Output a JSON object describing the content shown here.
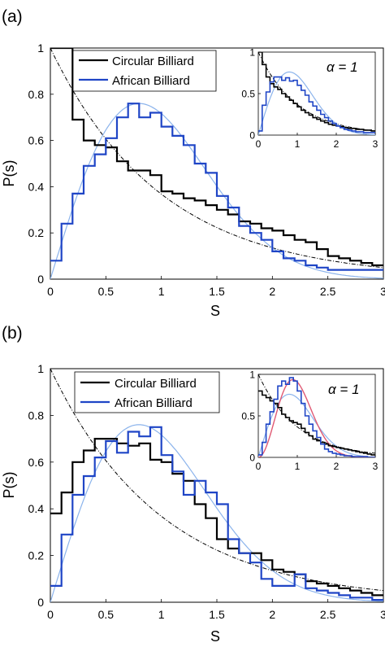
{
  "colors": {
    "circular": "#000000",
    "african": "#1f45c6",
    "poisson": "#000000",
    "wigner": "#8cb4ec",
    "gue": "#e05a74",
    "axis": "#000000"
  },
  "chart_data": [
    {
      "type": "line",
      "panel_label": "(a)",
      "xlabel": "S",
      "ylabel": "P(s)",
      "xlim": [
        0,
        3
      ],
      "ylim": [
        0,
        1
      ],
      "xticks": [
        "0",
        "0.5",
        "1",
        "1.5",
        "2",
        "2.5",
        "3"
      ],
      "yticks": [
        "0",
        "0.2",
        "0.4",
        "0.6",
        "0.8",
        "1"
      ],
      "legend_position": "top-left",
      "series": [
        {
          "name": "Circular Billiard",
          "style": "step",
          "bin_width": 0.1,
          "values": [
            1.0,
            1.0,
            0.69,
            0.6,
            0.58,
            0.57,
            0.51,
            0.47,
            0.47,
            0.45,
            0.38,
            0.37,
            0.35,
            0.34,
            0.32,
            0.3,
            0.28,
            0.25,
            0.24,
            0.22,
            0.21,
            0.19,
            0.17,
            0.16,
            0.13,
            0.1,
            0.09,
            0.08,
            0.07,
            0.06
          ]
        },
        {
          "name": "African Billiard",
          "style": "step",
          "bin_width": 0.1,
          "values": [
            0.08,
            0.24,
            0.37,
            0.49,
            0.54,
            0.61,
            0.7,
            0.76,
            0.7,
            0.72,
            0.66,
            0.62,
            0.58,
            0.5,
            0.46,
            0.36,
            0.31,
            0.23,
            0.2,
            0.17,
            0.12,
            0.09,
            0.08,
            0.06,
            0.05,
            0.04,
            0.04,
            0.04,
            0.04,
            0.04
          ]
        },
        {
          "style": "poisson-curve",
          "function": "exp(-s)"
        },
        {
          "style": "wigner-curve",
          "function": "(pi/2) s exp(-pi s^2/4)"
        }
      ],
      "inset": {
        "annotation": "α = 1",
        "xlim": [
          0,
          3
        ],
        "ylim": [
          0,
          1
        ],
        "xticks": [
          "0",
          "1",
          "2",
          "3"
        ],
        "yticks": [
          "0",
          "0.5",
          "1"
        ],
        "series": [
          {
            "name": "Circular Billiard",
            "style": "step",
            "bin_width": 0.1,
            "values": [
              1.0,
              0.85,
              0.7,
              0.62,
              0.58,
              0.55,
              0.5,
              0.46,
              0.42,
              0.38,
              0.34,
              0.3,
              0.27,
              0.24,
              0.21,
              0.19,
              0.17,
              0.15,
              0.13,
              0.12,
              0.11,
              0.1,
              0.09,
              0.08,
              0.08,
              0.07,
              0.07,
              0.06,
              0.06,
              0.05
            ]
          },
          {
            "name": "African Billiard",
            "style": "step",
            "bin_width": 0.1,
            "values": [
              0.05,
              0.36,
              0.52,
              0.64,
              0.7,
              0.7,
              0.66,
              0.69,
              0.65,
              0.66,
              0.6,
              0.54,
              0.48,
              0.4,
              0.35,
              0.3,
              0.25,
              0.21,
              0.17,
              0.14,
              0.11,
              0.09,
              0.07,
              0.06,
              0.05,
              0.04,
              0.04,
              0.03,
              0.03,
              0.03
            ]
          },
          {
            "style": "poisson-curve",
            "function": "exp(-s)"
          },
          {
            "style": "wigner-curve",
            "function": "(pi/2) s exp(-pi s^2/4)"
          }
        ]
      }
    },
    {
      "type": "line",
      "panel_label": "(b)",
      "xlabel": "S",
      "ylabel": "P(s)",
      "xlim": [
        0,
        3
      ],
      "ylim": [
        0,
        1
      ],
      "xticks": [
        "0",
        "0.5",
        "1",
        "1.5",
        "2",
        "2.5",
        "3"
      ],
      "yticks": [
        "0",
        "0.2",
        "0.4",
        "0.6",
        "0.8",
        "1"
      ],
      "legend_position": "top-center",
      "series": [
        {
          "name": "Circular Billiard",
          "style": "step",
          "bin_width": 0.1,
          "values": [
            0.38,
            0.47,
            0.6,
            0.65,
            0.7,
            0.7,
            0.68,
            0.67,
            0.68,
            0.61,
            0.6,
            0.55,
            0.52,
            0.42,
            0.36,
            0.27,
            0.23,
            0.21,
            0.21,
            0.18,
            0.14,
            0.13,
            0.12,
            0.09,
            0.08,
            0.07,
            0.06,
            0.05,
            0.04,
            0.03
          ]
        },
        {
          "name": "African Billiard",
          "style": "step",
          "bin_width": 0.1,
          "values": [
            0.07,
            0.29,
            0.46,
            0.54,
            0.62,
            0.69,
            0.64,
            0.73,
            0.71,
            0.75,
            0.63,
            0.56,
            0.46,
            0.52,
            0.47,
            0.42,
            0.27,
            0.21,
            0.17,
            0.1,
            0.07,
            0.07,
            0.12,
            0.06,
            0.05,
            0.04,
            0.03,
            0.02,
            0.02,
            0.01
          ]
        },
        {
          "style": "poisson-curve",
          "function": "exp(-s)"
        },
        {
          "style": "wigner-curve",
          "function": "(pi/2) s exp(-pi s^2/4)"
        }
      ],
      "inset": {
        "annotation": "α = 1",
        "xlim": [
          0,
          3
        ],
        "ylim": [
          0,
          1
        ],
        "xticks": [
          "0",
          "1",
          "2",
          "3"
        ],
        "yticks": [
          "0",
          "0.5",
          "1"
        ],
        "series": [
          {
            "name": "Circular Billiard",
            "style": "step",
            "bin_width": 0.1,
            "values": [
              0.8,
              0.75,
              0.72,
              0.68,
              0.65,
              0.6,
              0.52,
              0.48,
              0.44,
              0.42,
              0.4,
              0.35,
              0.3,
              0.26,
              0.22,
              0.2,
              0.18,
              0.16,
              0.14,
              0.13,
              0.12,
              0.11,
              0.1,
              0.09,
              0.08,
              0.07,
              0.06,
              0.05,
              0.04,
              0.03
            ]
          },
          {
            "name": "African Billiard",
            "style": "step",
            "bin_width": 0.1,
            "values": [
              0.03,
              0.18,
              0.4,
              0.55,
              0.7,
              0.86,
              0.92,
              0.88,
              0.96,
              0.92,
              0.8,
              0.65,
              0.5,
              0.4,
              0.32,
              0.24,
              0.16,
              0.1,
              0.07,
              0.05,
              0.04,
              0.03,
              0.02,
              0.02,
              0.01,
              0.01,
              0.01,
              0.01,
              0.0,
              0.0
            ]
          },
          {
            "style": "poisson-curve",
            "function": "exp(-s)"
          },
          {
            "style": "wigner-curve",
            "function": "(pi/2) s exp(-pi s^2/4)"
          },
          {
            "style": "gue-curve",
            "function": "(32/pi^2) s^2 exp(-4 s^2/pi)"
          }
        ]
      }
    }
  ]
}
